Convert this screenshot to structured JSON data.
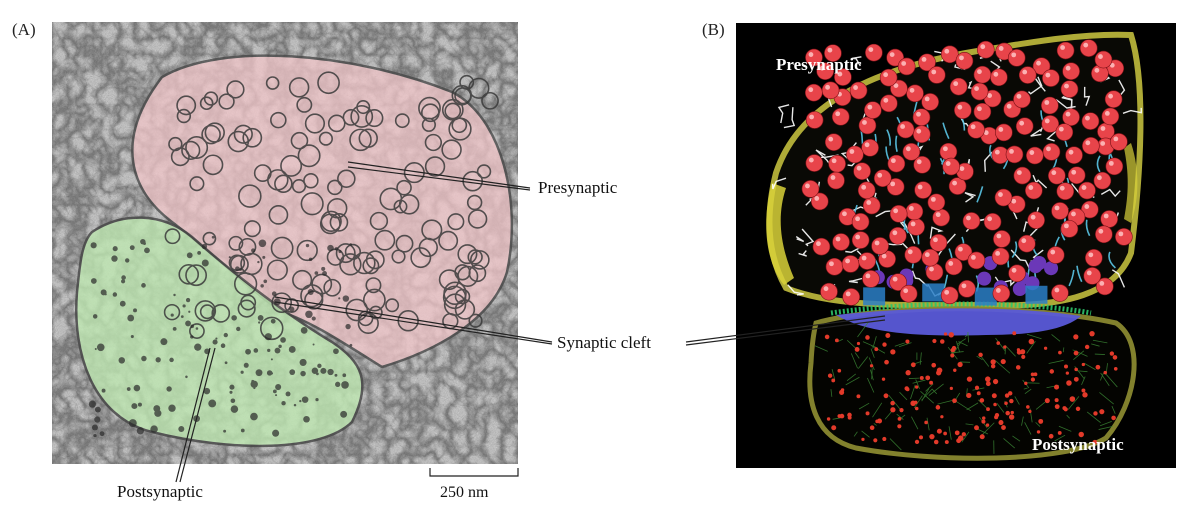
{
  "panel_a": {
    "label": "(A)",
    "callouts": {
      "presynaptic": "Presynaptic",
      "cleft": "Synaptic cleft",
      "postsynaptic": "Postsynaptic"
    },
    "scale_bar": "250 nm",
    "colors": {
      "presynaptic_tint": "#f2c6c9",
      "postsynaptic_tint": "#bfe8b2",
      "background_gray": "#b8b8b8"
    }
  },
  "panel_b": {
    "label": "(B)",
    "presynaptic_label": "Presynaptic",
    "postsynaptic_label": "Postsynaptic",
    "colors": {
      "background": "#000000",
      "membrane": "#b8b43a",
      "vesicle": "#e8444a",
      "filament": "#ffffff",
      "connector": "#5bc6e6",
      "cleft": "#5a5ad8",
      "postsynaptic_dots": "#e33a2a",
      "postsynaptic_mesh": "#3c8a36"
    }
  }
}
